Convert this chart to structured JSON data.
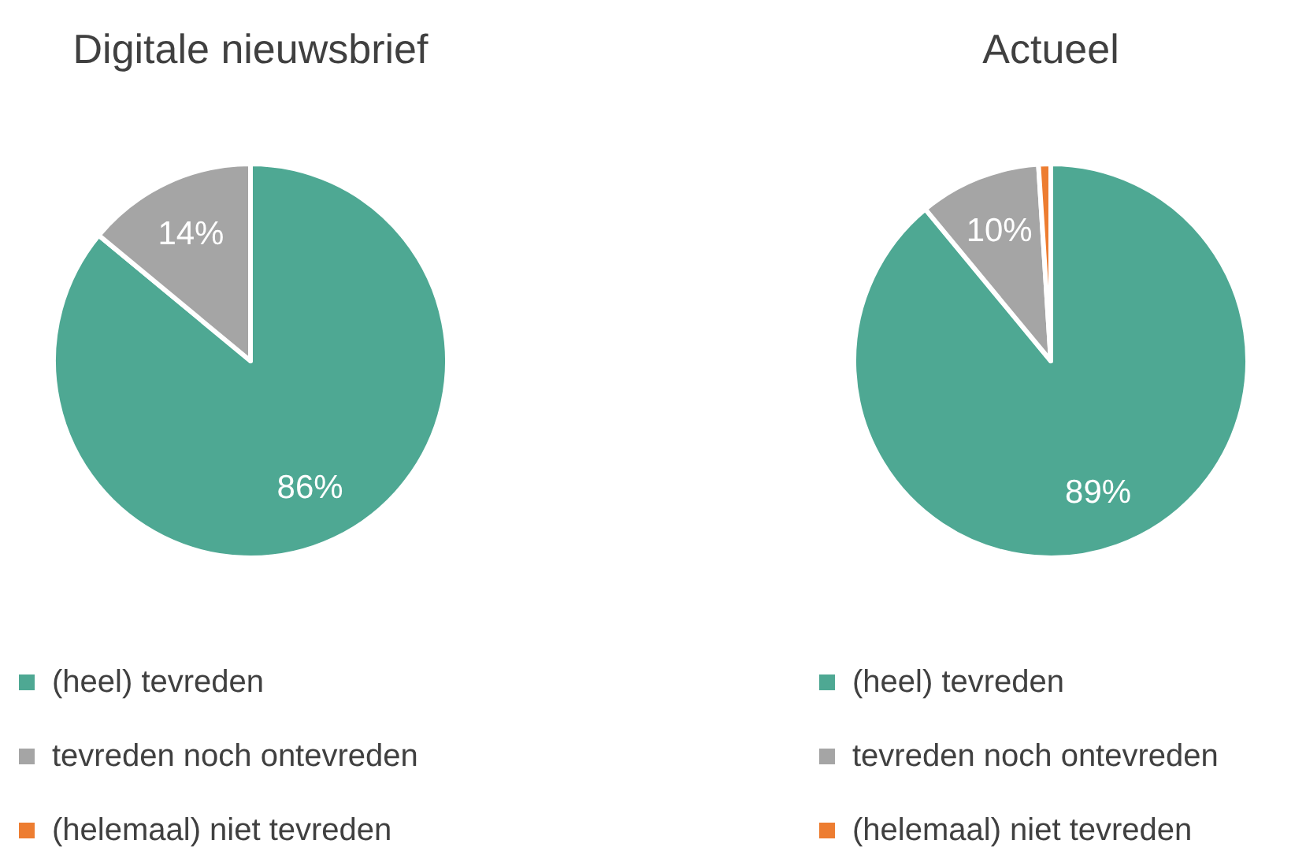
{
  "chart_data": [
    {
      "type": "pie",
      "title": "Digitale nieuwsbrief",
      "categories": [
        "(heel) tevreden",
        "tevreden noch ontevreden",
        "(helemaal) niet tevreden"
      ],
      "values": [
        86,
        14,
        0
      ],
      "colors": [
        "#4ea893",
        "#a5a5a5",
        "#ed7d31"
      ],
      "value_labels": [
        "86%",
        "14%",
        null
      ],
      "legend": "bottom"
    },
    {
      "type": "pie",
      "title": "Actueel",
      "categories": [
        "(heel) tevreden",
        "tevreden noch ontevreden",
        "(helemaal) niet tevreden"
      ],
      "values": [
        89,
        10,
        1
      ],
      "colors": [
        "#4ea893",
        "#a5a5a5",
        "#ed7d31"
      ],
      "value_labels": [
        "89%",
        "10%",
        null
      ],
      "legend": "bottom"
    }
  ]
}
